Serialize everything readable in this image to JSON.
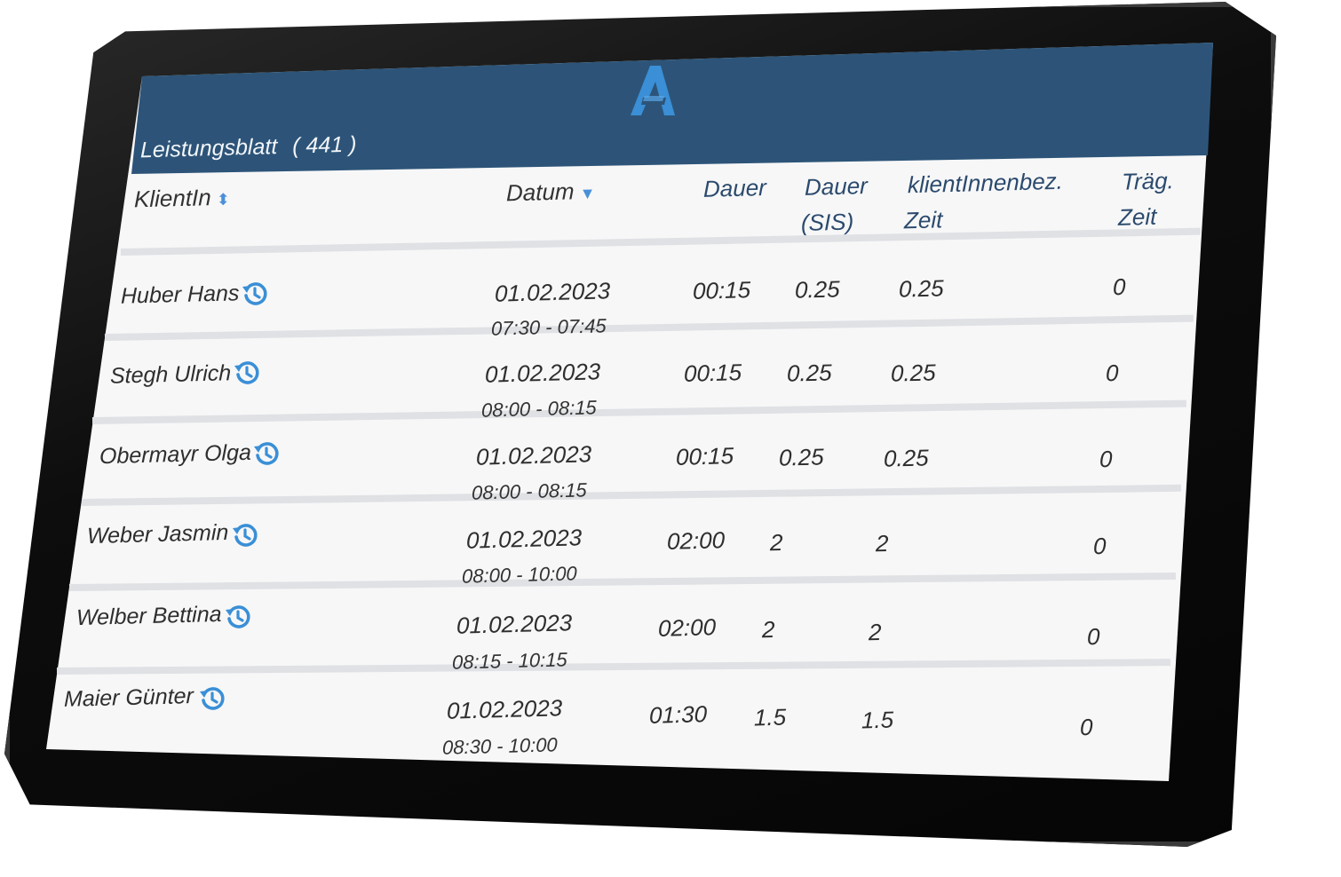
{
  "header": {
    "title": "Leistungsblatt",
    "count": "( 441 )",
    "logo_letter": "A",
    "accent_color": "#2d5478",
    "logo_color": "#3a8fd6"
  },
  "table": {
    "columns": [
      {
        "key": "client",
        "label": "KlientIn",
        "sort": "both"
      },
      {
        "key": "date",
        "label": "Datum",
        "sort": "desc"
      },
      {
        "key": "duration",
        "label": "Dauer"
      },
      {
        "key": "duration_sis_1",
        "label": "Dauer"
      },
      {
        "key": "duration_sis_2",
        "label": "(SIS)"
      },
      {
        "key": "client_time_1",
        "label": "klientInnenbez."
      },
      {
        "key": "client_time_2",
        "label": "Zeit"
      },
      {
        "key": "carrier_time_1",
        "label": "Träg."
      },
      {
        "key": "carrier_time_2",
        "label": "Zeit"
      }
    ],
    "rows": [
      {
        "client": "Huber Hans",
        "date": "01.02.2023",
        "time": "07:30 - 07:45",
        "duration": "00:15",
        "sis": "0.25",
        "client_time": "0.25",
        "carrier_time": "0",
        "icon": "history-icon"
      },
      {
        "client": "Stegh Ulrich",
        "date": "01.02.2023",
        "time": "08:00 - 08:15",
        "duration": "00:15",
        "sis": "0.25",
        "client_time": "0.25",
        "carrier_time": "0",
        "icon": "history-icon"
      },
      {
        "client": "Obermayr Olga",
        "date": "01.02.2023",
        "time": "08:00 - 08:15",
        "duration": "00:15",
        "sis": "0.25",
        "client_time": "0.25",
        "carrier_time": "0",
        "icon": "history-icon"
      },
      {
        "client": "Weber Jasmin",
        "date": "01.02.2023",
        "time": "08:00 - 10:00",
        "duration": "02:00",
        "sis": "2",
        "client_time": "2",
        "carrier_time": "0",
        "icon": "history-icon"
      },
      {
        "client": "Welber Bettina",
        "date": "01.02.2023",
        "time": "08:15 - 10:15",
        "duration": "02:00",
        "sis": "2",
        "client_time": "2",
        "carrier_time": "0",
        "icon": "history-icon"
      },
      {
        "client": "Maier Günter",
        "date": "01.02.2023",
        "time": "08:30 - 10:00",
        "duration": "01:30",
        "sis": "1.5",
        "client_time": "1.5",
        "carrier_time": "0",
        "icon": "history-icon"
      }
    ]
  }
}
